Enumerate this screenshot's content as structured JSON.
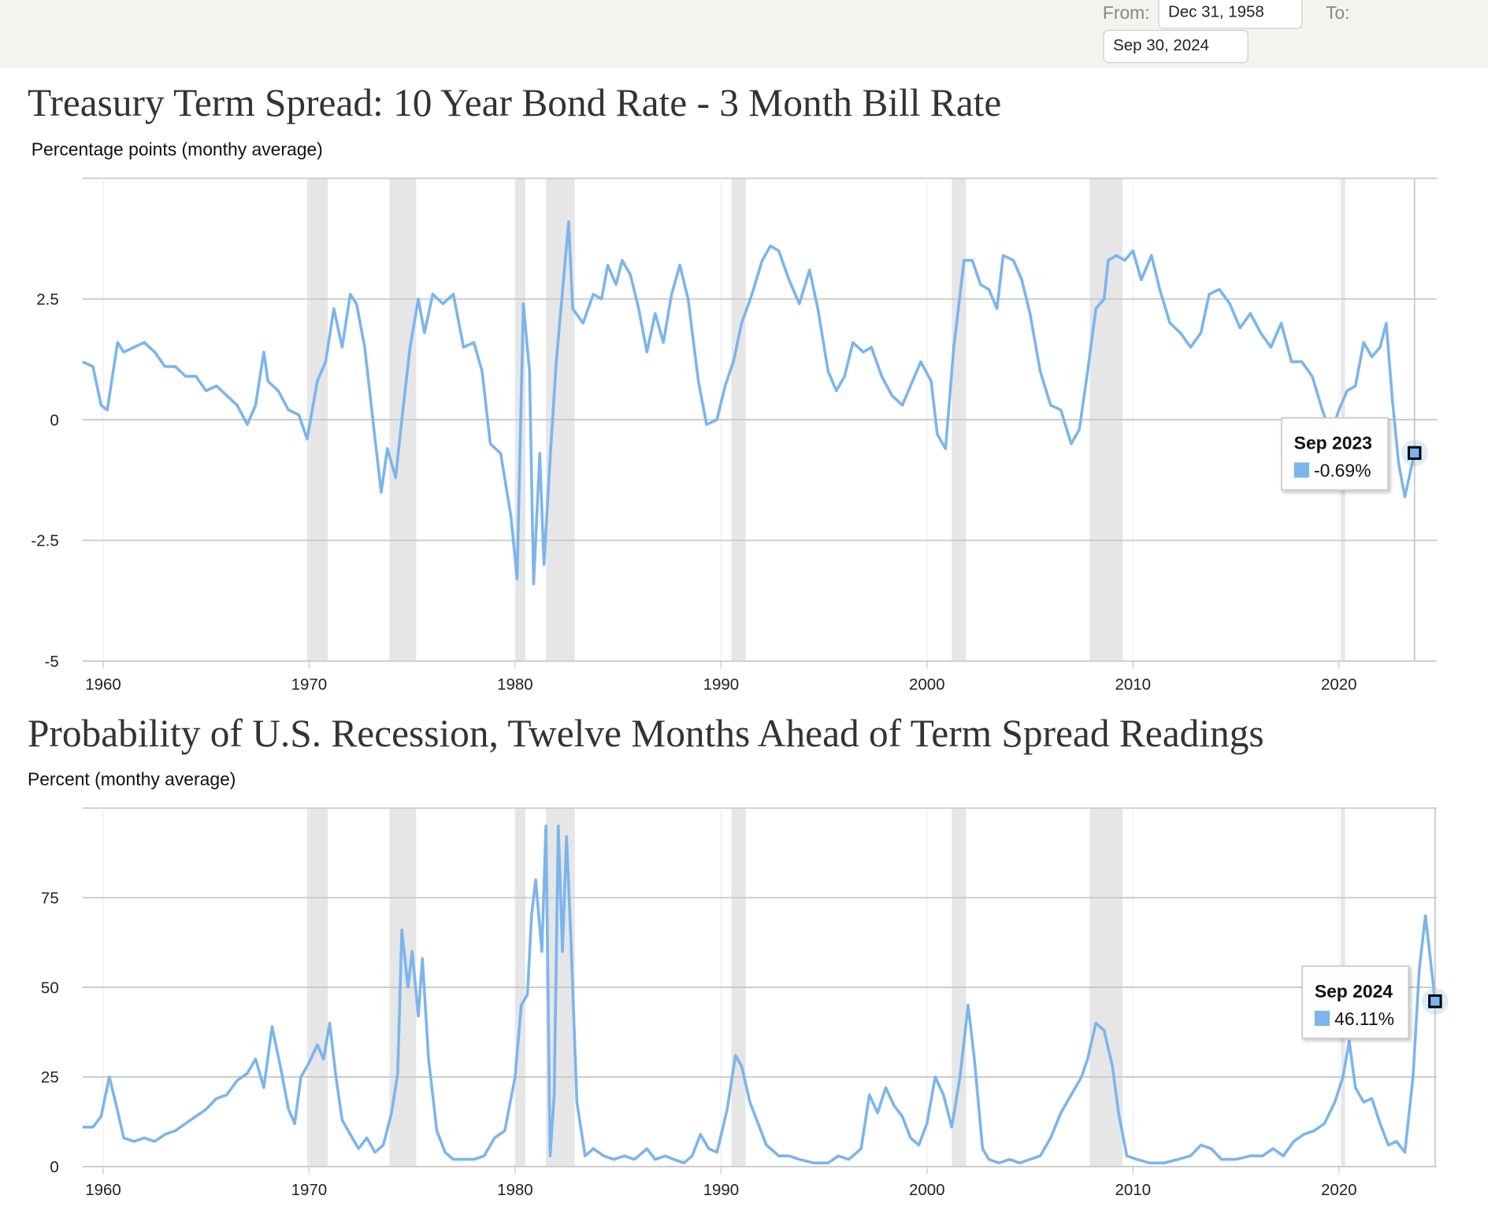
{
  "header": {
    "from_label": "From:",
    "from_value": "Dec 31, 1958",
    "to_label": "To:",
    "to_value": "Sep 30, 2024"
  },
  "chart_data": [
    {
      "type": "line",
      "title": "Treasury Term Spread: 10 Year Bond Rate - 3 Month Bill Rate",
      "subtitle": "Percentage points (monthy average)",
      "color": "#7cb5ec",
      "x": [
        1959.0,
        1959.5,
        1959.9,
        1960.2,
        1960.7,
        1961.0,
        1961.5,
        1962.0,
        1962.5,
        1963.0,
        1963.5,
        1964.0,
        1964.5,
        1965.0,
        1965.5,
        1966.0,
        1966.5,
        1967.0,
        1967.4,
        1967.8,
        1968.0,
        1968.5,
        1969.0,
        1969.5,
        1969.9,
        1970.4,
        1970.8,
        1971.2,
        1971.6,
        1972.0,
        1972.3,
        1972.7,
        1973.2,
        1973.5,
        1973.8,
        1974.2,
        1974.5,
        1974.9,
        1975.3,
        1975.6,
        1976.0,
        1976.5,
        1977.0,
        1977.5,
        1978.0,
        1978.4,
        1978.8,
        1979.3,
        1979.8,
        1980.1,
        1980.4,
        1980.7,
        1980.9,
        1981.2,
        1981.4,
        1981.7,
        1982.0,
        1982.6,
        1982.8,
        1983.3,
        1983.8,
        1984.2,
        1984.5,
        1984.9,
        1985.2,
        1985.6,
        1986.0,
        1986.4,
        1986.8,
        1987.2,
        1987.6,
        1988.0,
        1988.4,
        1988.9,
        1989.3,
        1989.8,
        1990.2,
        1990.6,
        1991.0,
        1991.5,
        1992.0,
        1992.4,
        1992.8,
        1993.3,
        1993.8,
        1994.3,
        1994.7,
        1995.2,
        1995.6,
        1996.0,
        1996.4,
        1996.9,
        1997.3,
        1997.8,
        1998.3,
        1998.8,
        1999.3,
        1999.7,
        2000.2,
        2000.5,
        2000.9,
        2001.3,
        2001.8,
        2002.2,
        2002.6,
        2003.0,
        2003.4,
        2003.7,
        2004.2,
        2004.6,
        2005.0,
        2005.5,
        2006.0,
        2006.5,
        2007.0,
        2007.4,
        2007.8,
        2008.2,
        2008.6,
        2008.8,
        2009.2,
        2009.6,
        2010.0,
        2010.4,
        2010.9,
        2011.3,
        2011.8,
        2012.3,
        2012.8,
        2013.3,
        2013.7,
        2014.2,
        2014.7,
        2015.2,
        2015.7,
        2016.2,
        2016.7,
        2017.2,
        2017.7,
        2018.2,
        2018.7,
        2019.2,
        2019.6,
        2020.0,
        2020.4,
        2020.8,
        2021.2,
        2021.6,
        2022.0,
        2022.3,
        2022.6,
        2022.9,
        2023.2,
        2023.67
      ],
      "values": [
        1.2,
        1.1,
        0.3,
        0.2,
        1.6,
        1.4,
        1.5,
        1.6,
        1.4,
        1.1,
        1.1,
        0.9,
        0.9,
        0.6,
        0.7,
        0.5,
        0.3,
        -0.1,
        0.3,
        1.4,
        0.8,
        0.6,
        0.2,
        0.1,
        -0.4,
        0.8,
        1.2,
        2.3,
        1.5,
        2.6,
        2.4,
        1.5,
        -0.4,
        -1.5,
        -0.6,
        -1.2,
        0.0,
        1.5,
        2.5,
        1.8,
        2.6,
        2.4,
        2.6,
        1.5,
        1.6,
        1.0,
        -0.5,
        -0.7,
        -2.0,
        -3.3,
        2.4,
        1.0,
        -3.4,
        -0.7,
        -3.0,
        -0.8,
        1.2,
        4.1,
        2.3,
        2.0,
        2.6,
        2.5,
        3.2,
        2.8,
        3.3,
        3.0,
        2.3,
        1.4,
        2.2,
        1.6,
        2.6,
        3.2,
        2.5,
        0.8,
        -0.1,
        0.0,
        0.7,
        1.2,
        2.0,
        2.6,
        3.3,
        3.6,
        3.5,
        2.9,
        2.4,
        3.1,
        2.3,
        1.0,
        0.6,
        0.9,
        1.6,
        1.4,
        1.5,
        0.9,
        0.5,
        0.3,
        0.8,
        1.2,
        0.8,
        -0.3,
        -0.6,
        1.5,
        3.3,
        3.3,
        2.8,
        2.7,
        2.3,
        3.4,
        3.3,
        2.9,
        2.2,
        1.0,
        0.3,
        0.2,
        -0.5,
        -0.2,
        1.0,
        2.3,
        2.5,
        3.3,
        3.4,
        3.3,
        3.5,
        2.9,
        3.4,
        2.7,
        2.0,
        1.8,
        1.5,
        1.8,
        2.6,
        2.7,
        2.4,
        1.9,
        2.2,
        1.8,
        1.5,
        2.0,
        1.2,
        1.2,
        0.9,
        0.2,
        -0.3,
        0.2,
        0.6,
        0.7,
        1.6,
        1.3,
        1.5,
        2.0,
        0.4,
        -0.9,
        -1.6,
        -0.69
      ],
      "xlim": [
        1959,
        2024.75
      ],
      "xticks": [
        1960,
        1970,
        1980,
        1990,
        2000,
        2010,
        2020
      ],
      "ylim": [
        -5,
        5
      ],
      "yticks": [
        -5,
        -2.5,
        0,
        2.5
      ],
      "grid": true,
      "recessions": [
        {
          "start": 1969.9,
          "end": 1970.9
        },
        {
          "start": 1973.9,
          "end": 1975.2
        },
        {
          "start": 1980.0,
          "end": 1980.5
        },
        {
          "start": 1981.5,
          "end": 1982.9
        },
        {
          "start": 1990.5,
          "end": 1991.2
        },
        {
          "start": 2001.2,
          "end": 2001.9
        },
        {
          "start": 2007.9,
          "end": 2009.5
        },
        {
          "start": 2020.1,
          "end": 2020.3
        }
      ],
      "tooltip": {
        "label": "Sep 2023",
        "x": 2023.67,
        "value": -0.69,
        "value_label": "-0.69%"
      }
    },
    {
      "type": "line",
      "title": "Probability of U.S. Recession, Twelve Months Ahead of Term Spread Readings",
      "subtitle": "Percent (monthy average)",
      "color": "#7cb5ec",
      "x": [
        1959.0,
        1959.5,
        1959.9,
        1960.3,
        1960.6,
        1961.0,
        1961.5,
        1962.0,
        1962.5,
        1963.0,
        1963.5,
        1964.0,
        1964.5,
        1965.0,
        1965.5,
        1966.0,
        1966.5,
        1967.0,
        1967.4,
        1967.8,
        1968.2,
        1968.6,
        1969.0,
        1969.3,
        1969.6,
        1970.0,
        1970.4,
        1970.7,
        1971.0,
        1971.3,
        1971.6,
        1972.0,
        1972.4,
        1972.8,
        1973.2,
        1973.6,
        1974.0,
        1974.3,
        1974.5,
        1974.8,
        1975.0,
        1975.3,
        1975.5,
        1975.8,
        1976.2,
        1976.6,
        1977.0,
        1977.5,
        1978.0,
        1978.5,
        1979.0,
        1979.5,
        1980.0,
        1980.3,
        1980.6,
        1980.8,
        1981.0,
        1981.3,
        1981.5,
        1981.7,
        1981.9,
        1982.1,
        1982.3,
        1982.5,
        1982.7,
        1983.0,
        1983.4,
        1983.8,
        1984.3,
        1984.8,
        1985.3,
        1985.8,
        1986.4,
        1986.8,
        1987.3,
        1987.7,
        1988.2,
        1988.6,
        1989.0,
        1989.4,
        1989.8,
        1990.3,
        1990.7,
        1991.0,
        1991.4,
        1991.8,
        1992.2,
        1992.8,
        1993.3,
        1993.8,
        1994.5,
        1995.2,
        1995.7,
        1996.2,
        1996.8,
        1997.2,
        1997.6,
        1998.0,
        1998.4,
        1998.8,
        1999.2,
        1999.6,
        2000.0,
        2000.4,
        2000.8,
        2001.2,
        2001.6,
        2002.0,
        2002.3,
        2002.7,
        2003.0,
        2003.5,
        2004.0,
        2004.5,
        2005.0,
        2005.5,
        2006.0,
        2006.5,
        2007.0,
        2007.5,
        2007.8,
        2008.2,
        2008.6,
        2009.0,
        2009.3,
        2009.7,
        2010.2,
        2010.8,
        2011.5,
        2012.2,
        2012.8,
        2013.3,
        2013.8,
        2014.3,
        2015.0,
        2015.7,
        2016.3,
        2016.8,
        2017.3,
        2017.8,
        2018.3,
        2018.8,
        2019.3,
        2019.8,
        2020.2,
        2020.5,
        2020.8,
        2021.2,
        2021.6,
        2022.0,
        2022.4,
        2022.8,
        2023.2,
        2023.6,
        2023.9,
        2024.2,
        2024.4,
        2024.67
      ],
      "values": [
        11,
        11,
        14,
        25,
        18,
        8,
        7,
        8,
        7,
        9,
        10,
        12,
        14,
        16,
        19,
        20,
        24,
        26,
        30,
        22,
        39,
        28,
        16,
        12,
        25,
        29,
        34,
        30,
        40,
        25,
        13,
        9,
        5,
        8,
        4,
        6,
        15,
        26,
        66,
        50,
        60,
        42,
        58,
        30,
        10,
        4,
        2,
        2,
        2,
        3,
        8,
        10,
        25,
        45,
        48,
        70,
        80,
        60,
        95,
        3,
        20,
        95,
        60,
        92,
        65,
        18,
        3,
        5,
        3,
        2,
        3,
        2,
        5,
        2,
        3,
        2,
        1,
        3,
        9,
        5,
        4,
        16,
        31,
        28,
        18,
        12,
        6,
        3,
        3,
        2,
        1,
        1,
        3,
        2,
        5,
        20,
        15,
        22,
        17,
        14,
        8,
        6,
        12,
        25,
        20,
        11,
        25,
        45,
        30,
        5,
        2,
        1,
        2,
        1,
        2,
        3,
        8,
        15,
        20,
        25,
        30,
        40,
        38,
        28,
        15,
        3,
        2,
        1,
        1,
        2,
        3,
        6,
        5,
        2,
        2,
        3,
        3,
        5,
        3,
        7,
        9,
        10,
        12,
        18,
        25,
        35,
        22,
        18,
        19,
        12,
        6,
        7,
        4,
        25,
        55,
        70,
        60,
        46.11
      ],
      "xlim": [
        1959,
        2024.75
      ],
      "xticks": [
        1960,
        1970,
        1980,
        1990,
        2000,
        2010,
        2020
      ],
      "ylim": [
        0,
        100
      ],
      "yticks": [
        0,
        25,
        50,
        75
      ],
      "grid": true,
      "recessions": [
        {
          "start": 1969.9,
          "end": 1970.9
        },
        {
          "start": 1973.9,
          "end": 1975.2
        },
        {
          "start": 1980.0,
          "end": 1980.5
        },
        {
          "start": 1981.5,
          "end": 1982.9
        },
        {
          "start": 1990.5,
          "end": 1991.2
        },
        {
          "start": 2001.2,
          "end": 2001.9
        },
        {
          "start": 2007.9,
          "end": 2009.5
        },
        {
          "start": 2020.1,
          "end": 2020.3
        }
      ],
      "tooltip": {
        "label": "Sep 2024",
        "x": 2024.67,
        "value": 46.11,
        "value_label": "46.11%"
      }
    }
  ]
}
